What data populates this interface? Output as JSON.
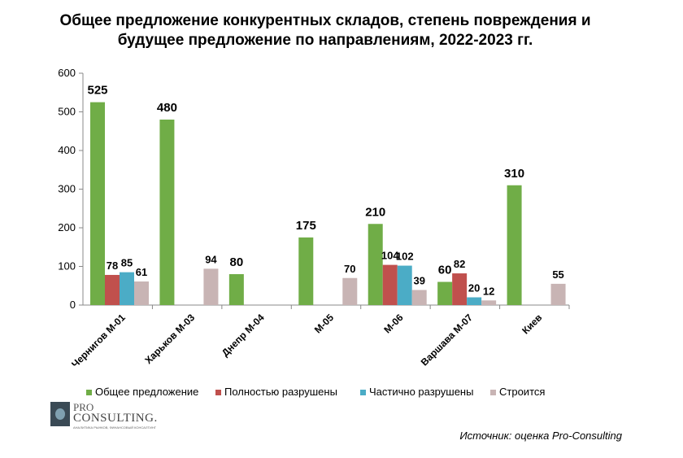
{
  "title_line1": "Общее предложение конкурентных складов, степень повреждения и",
  "title_line2": "будущее предложение по направлениям, 2022-2023 гг.",
  "source": "Источник: оценка Pro-Consulting",
  "logo": {
    "pro": "PRO",
    "consulting": "CONSULTING.",
    "tagline": "АНАЛИТИКА РЫНКОВ, ФИНАНСОВЫЙ КОНСАЛТИНГ"
  },
  "colors": {
    "total": "#70ad47",
    "destroyed": "#c0504d",
    "partial": "#4bacc6",
    "building": "#c8b4b4",
    "axis": "#888888"
  },
  "chart_data": {
    "type": "bar",
    "categories": [
      "Чернигов М-01",
      "Харьков М-03",
      "Днепр М-04",
      "М-05",
      "М-06",
      "Варшава М-07",
      "Киев"
    ],
    "series": [
      {
        "name": "Общее предложение",
        "values": [
          525,
          480,
          80,
          175,
          210,
          60,
          310
        ]
      },
      {
        "name": "Полностью разрушены",
        "values": [
          78,
          null,
          null,
          null,
          104,
          82,
          null
        ]
      },
      {
        "name": "Частично разрушены",
        "values": [
          85,
          null,
          null,
          null,
          102,
          20,
          null
        ]
      },
      {
        "name": "Строится",
        "values": [
          61,
          94,
          null,
          70,
          39,
          12,
          55
        ]
      }
    ],
    "ylim": [
      0,
      600
    ],
    "yticks": [
      0,
      100,
      200,
      300,
      400,
      500,
      600
    ],
    "grid": false,
    "legend": "bottom",
    "xlabel": "",
    "ylabel": ""
  }
}
